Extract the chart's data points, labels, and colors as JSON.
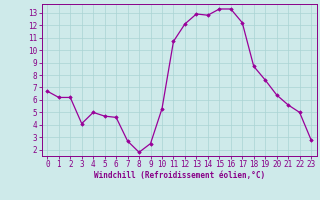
{
  "x": [
    0,
    1,
    2,
    3,
    4,
    5,
    6,
    7,
    8,
    9,
    10,
    11,
    12,
    13,
    14,
    15,
    16,
    17,
    18,
    19,
    20,
    21,
    22,
    23
  ],
  "y": [
    6.7,
    6.2,
    6.2,
    4.1,
    5.0,
    4.7,
    4.6,
    2.7,
    1.8,
    2.5,
    5.3,
    10.7,
    12.1,
    12.9,
    12.8,
    13.3,
    13.3,
    12.2,
    8.7,
    7.6,
    6.4,
    5.6,
    5.0,
    2.8
  ],
  "line_color": "#990099",
  "marker": "D",
  "marker_size": 1.8,
  "bg_color": "#ceeaea",
  "grid_color": "#aad4d4",
  "tick_color": "#880088",
  "label_color": "#880088",
  "xlabel": "Windchill (Refroidissement éolien,°C)",
  "xlim": [
    -0.5,
    23.5
  ],
  "ylim": [
    1.5,
    13.7
  ],
  "yticks": [
    2,
    3,
    4,
    5,
    6,
    7,
    8,
    9,
    10,
    11,
    12,
    13
  ],
  "xticks": [
    0,
    1,
    2,
    3,
    4,
    5,
    6,
    7,
    8,
    9,
    10,
    11,
    12,
    13,
    14,
    15,
    16,
    17,
    18,
    19,
    20,
    21,
    22,
    23
  ],
  "linewidth": 0.9,
  "spine_color": "#880088",
  "xlabel_fontsize": 5.5,
  "tick_fontsize": 5.5
}
